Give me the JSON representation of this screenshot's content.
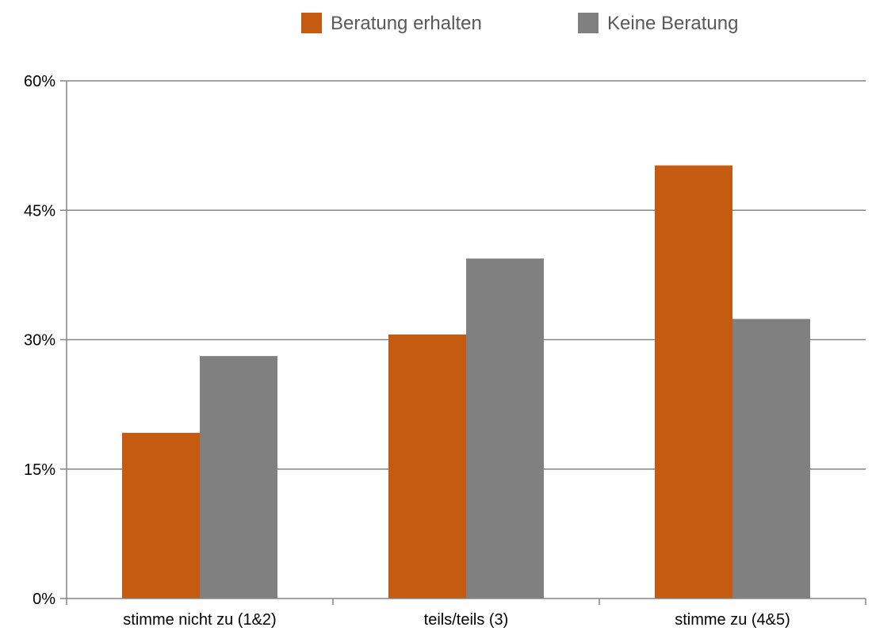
{
  "chart_data": {
    "type": "bar",
    "categories": [
      "stimme nicht zu (1&2)",
      "teils/teils (3)",
      "stimme zu (4&5)"
    ],
    "series": [
      {
        "name": "Beratung erhalten",
        "color": "#C55A11",
        "values": [
          19.2,
          30.6,
          50.2
        ]
      },
      {
        "name": "Keine Beratung",
        "color": "#808080",
        "values": [
          28.1,
          39.4,
          32.4
        ]
      }
    ],
    "yticks": [
      "0%",
      "15%",
      "30%",
      "45%",
      "60%"
    ],
    "ytick_values": [
      0,
      15,
      30,
      45,
      60
    ],
    "ylim": [
      0,
      60
    ],
    "title": "",
    "xlabel": "",
    "ylabel": "",
    "grid": true,
    "legend": "top-center"
  }
}
